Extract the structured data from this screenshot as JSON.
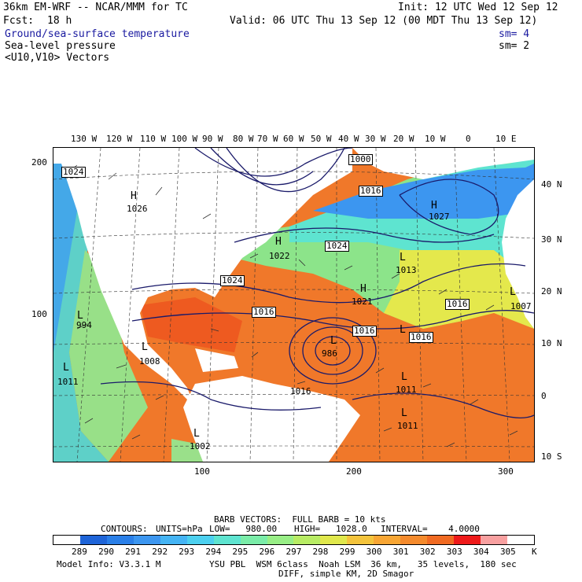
{
  "header": {
    "model_line": "36km EM-WRF -- NCAR/MMM for TC",
    "init_line": "Init: 12 UTC Wed 12 Sep 12",
    "fcst_label": "Fcst:",
    "fcst_value": "18 h",
    "valid_line": "Valid: 06 UTC Thu 13 Sep 12 (00 MDT Thu 13 Sep 12)",
    "field1": "Ground/sea-surface temperature",
    "field1_sm": "sm= 4",
    "field2": "Sea-level pressure",
    "field2_sm": "sm= 2",
    "field3": "<U10,V10> Vectors"
  },
  "map": {
    "lon_labels": [
      "130 W",
      "120 W",
      "110 W",
      "100 W",
      "90 W",
      "80 W",
      "70 W",
      "60 W",
      "50 W",
      "40 W",
      "30 W",
      "20 W",
      "10 W",
      "0",
      "10 E"
    ],
    "lat_labels": [
      "40 N",
      "30 N",
      "20 N",
      "10 N",
      "0",
      "10 S"
    ],
    "y_ticks": [
      "200",
      "100"
    ],
    "x_ticks": [
      "100",
      "200",
      "300"
    ],
    "pressure_labels": [
      "1024",
      "1000",
      "1016",
      "1026",
      "1024",
      "1022",
      "1027",
      "1024",
      "1013",
      "1016",
      "1016",
      "1007",
      "1021",
      "1016",
      "1016",
      "1016",
      "994",
      "986",
      "1008",
      "1011",
      "1011",
      "1011",
      "1002"
    ],
    "highs": [
      "H",
      "H",
      "H",
      "H"
    ],
    "lows": [
      "L",
      "L",
      "L",
      "L",
      "L",
      "L",
      "L",
      "L",
      "L",
      "L"
    ]
  },
  "footer": {
    "barb_line": "BARB VECTORS:  FULL BARB = 10 kts",
    "contours_label": "CONTOURS:",
    "units": "UNITS=hPa",
    "low": "LOW=   980.00",
    "high": "HIGH=   1028.0",
    "interval": "INTERVAL=    4.0000",
    "colorbar_labels": [
      "289",
      "290",
      "291",
      "292",
      "293",
      "294",
      "295",
      "296",
      "297",
      "298",
      "299",
      "300",
      "301",
      "302",
      "303",
      "304",
      "305"
    ],
    "colorbar_unit": "K",
    "colorbar_colors": [
      "#ffffff",
      "#1e64d8",
      "#2a7fe8",
      "#3c96f0",
      "#44b4f4",
      "#4cd0ef",
      "#5ee4d0",
      "#7aeca8",
      "#98ee86",
      "#b8ec64",
      "#e0e84c",
      "#f4c43c",
      "#f8a634",
      "#f48a2c",
      "#f06a22",
      "#ee1a1a",
      "#f8a0a0",
      "#ffffff"
    ],
    "model_info": "Model Info: V3.3.1 M",
    "physics_line": "YSU PBL  WSM 6class  Noah LSM  36 km,   35 levels,  180 sec",
    "diff_line": "DIFF, simple KM, 2D Smagor"
  }
}
